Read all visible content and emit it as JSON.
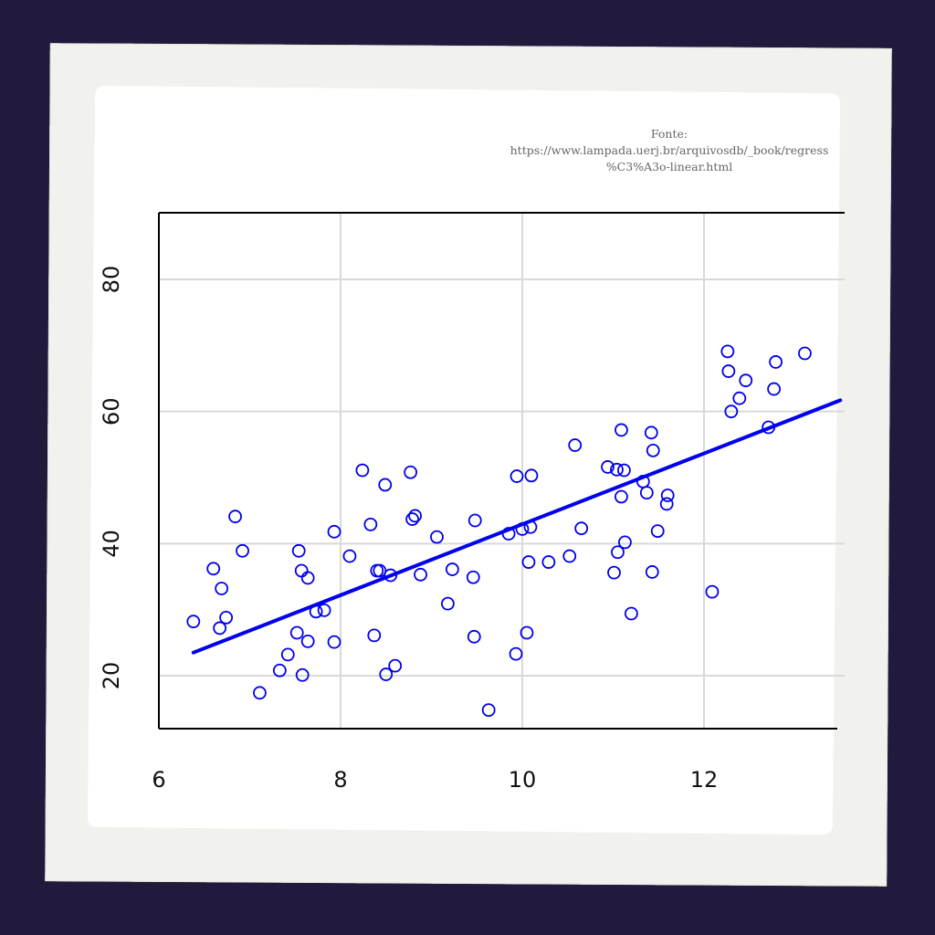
{
  "source_note": {
    "line1": "Fonte:",
    "line2": "https://www.lampada.uerj.br/arquivosdb/_book/regress",
    "line3": "%C3%A3o-linear.html"
  },
  "colors": {
    "points": "#0000ee",
    "fit_line": "#0000ee",
    "grid": "#d9d9d9",
    "frame": "#000000"
  },
  "chart_data": {
    "type": "scatter",
    "title": "",
    "xlabel": "",
    "ylabel": "",
    "xlim": [
      6,
      13.5
    ],
    "ylim": [
      12,
      90
    ],
    "x_ticks": [
      6,
      8,
      10,
      12
    ],
    "y_ticks": [
      20,
      40,
      60,
      80
    ],
    "grid": true,
    "points": [
      [
        6.38,
        28.2
      ],
      [
        6.6,
        36.2
      ],
      [
        6.67,
        27.2
      ],
      [
        6.69,
        33.2
      ],
      [
        6.74,
        28.8
      ],
      [
        6.84,
        44.1
      ],
      [
        6.92,
        38.9
      ],
      [
        7.11,
        17.4
      ],
      [
        7.33,
        20.8
      ],
      [
        7.42,
        23.2
      ],
      [
        7.52,
        26.5
      ],
      [
        7.54,
        38.9
      ],
      [
        7.57,
        35.9
      ],
      [
        7.58,
        20.1
      ],
      [
        7.64,
        34.8
      ],
      [
        7.64,
        25.2
      ],
      [
        7.73,
        29.7
      ],
      [
        7.82,
        29.9
      ],
      [
        7.93,
        41.8
      ],
      [
        7.93,
        25.1
      ],
      [
        8.1,
        38.1
      ],
      [
        8.24,
        51.1
      ],
      [
        8.33,
        42.9
      ],
      [
        8.37,
        26.1
      ],
      [
        8.4,
        35.9
      ],
      [
        8.43,
        35.9
      ],
      [
        8.49,
        48.9
      ],
      [
        8.5,
        20.2
      ],
      [
        8.55,
        35.2
      ],
      [
        8.6,
        21.5
      ],
      [
        8.77,
        50.8
      ],
      [
        8.79,
        43.7
      ],
      [
        8.82,
        44.2
      ],
      [
        8.88,
        35.3
      ],
      [
        9.06,
        41.0
      ],
      [
        9.18,
        30.9
      ],
      [
        9.23,
        36.1
      ],
      [
        9.46,
        34.9
      ],
      [
        9.47,
        25.9
      ],
      [
        9.48,
        43.5
      ],
      [
        9.63,
        14.8
      ],
      [
        9.85,
        41.5
      ],
      [
        9.93,
        23.3
      ],
      [
        9.94,
        50.2
      ],
      [
        10.0,
        42.2
      ],
      [
        10.05,
        26.5
      ],
      [
        10.07,
        37.2
      ],
      [
        10.09,
        42.5
      ],
      [
        10.1,
        50.3
      ],
      [
        10.29,
        37.2
      ],
      [
        10.52,
        38.1
      ],
      [
        10.58,
        54.9
      ],
      [
        10.65,
        42.3
      ],
      [
        10.94,
        51.6
      ],
      [
        11.01,
        35.6
      ],
      [
        11.04,
        51.2
      ],
      [
        11.05,
        38.7
      ],
      [
        11.09,
        57.2
      ],
      [
        11.09,
        47.1
      ],
      [
        11.12,
        51.1
      ],
      [
        11.13,
        40.2
      ],
      [
        11.2,
        29.4
      ],
      [
        11.33,
        49.4
      ],
      [
        11.37,
        47.7
      ],
      [
        11.42,
        56.8
      ],
      [
        11.43,
        35.7
      ],
      [
        11.44,
        54.1
      ],
      [
        11.49,
        41.9
      ],
      [
        11.59,
        46.0
      ],
      [
        11.6,
        47.3
      ],
      [
        12.09,
        32.7
      ],
      [
        12.26,
        69.1
      ],
      [
        12.27,
        66.1
      ],
      [
        12.3,
        60.0
      ],
      [
        12.39,
        62.0
      ],
      [
        12.46,
        64.7
      ],
      [
        12.71,
        57.6
      ],
      [
        12.77,
        63.4
      ],
      [
        12.79,
        67.5
      ],
      [
        13.11,
        68.8
      ]
    ],
    "fit_line": {
      "x": [
        6.38,
        13.5
      ],
      "y": [
        23.5,
        61.7
      ]
    }
  }
}
